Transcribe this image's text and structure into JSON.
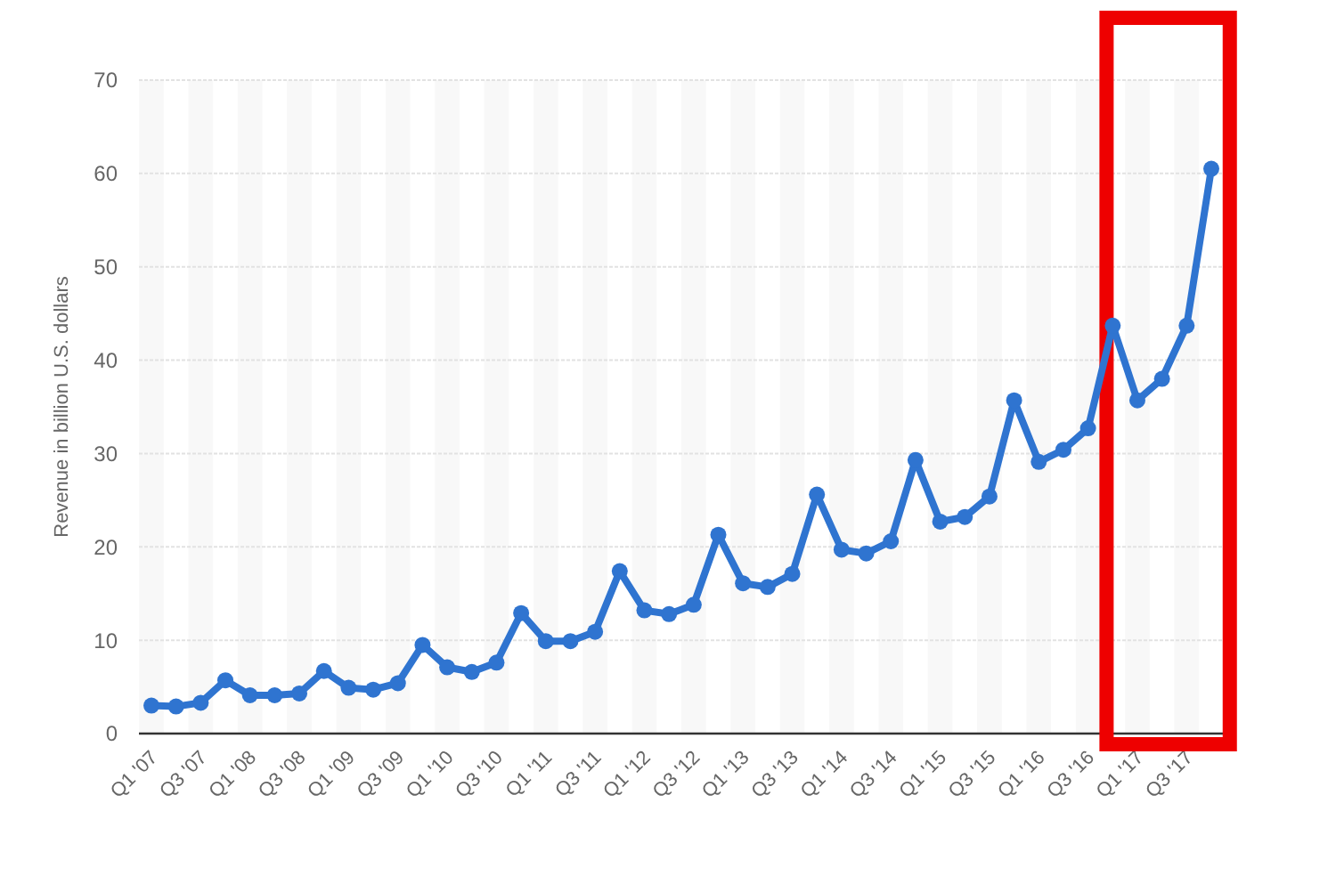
{
  "chart_data": {
    "type": "line",
    "ylabel": "Revenue in billion U.S. dollars",
    "categories": [
      "Q1 '07",
      null,
      "Q3 '07",
      null,
      "Q1 '08",
      null,
      "Q3 '08",
      null,
      "Q1 '09",
      null,
      "Q3 '09",
      null,
      "Q1 '10",
      null,
      "Q3 '10",
      null,
      "Q1 '11",
      null,
      "Q3 '11",
      null,
      "Q1 '12",
      null,
      "Q3 '12",
      null,
      "Q1 '13",
      null,
      "Q3 '13",
      null,
      "Q1 '14",
      null,
      "Q3 '14",
      null,
      "Q1 '15",
      null,
      "Q3 '15",
      null,
      "Q1 '16",
      null,
      "Q3 '16",
      null,
      "Q1 '17",
      null,
      "Q3 '17",
      null
    ],
    "series": [
      {
        "color": "#2f74d0",
        "values": [
          3.0,
          2.9,
          3.3,
          5.7,
          4.1,
          4.1,
          4.3,
          6.7,
          4.9,
          4.7,
          5.4,
          9.5,
          7.1,
          6.6,
          7.6,
          12.9,
          9.9,
          9.9,
          10.9,
          17.4,
          13.2,
          12.8,
          13.8,
          21.3,
          16.1,
          15.7,
          17.1,
          25.6,
          19.7,
          19.3,
          20.6,
          29.3,
          22.7,
          23.2,
          25.4,
          35.7,
          29.1,
          30.4,
          32.7,
          43.7,
          35.7,
          38.0,
          43.7,
          60.5
        ]
      }
    ],
    "ylim": [
      0,
      70
    ],
    "yticks": [
      0,
      10,
      20,
      30,
      40,
      50,
      60,
      70
    ],
    "grid": "y",
    "marker": "circle",
    "line_style": "solid"
  }
}
